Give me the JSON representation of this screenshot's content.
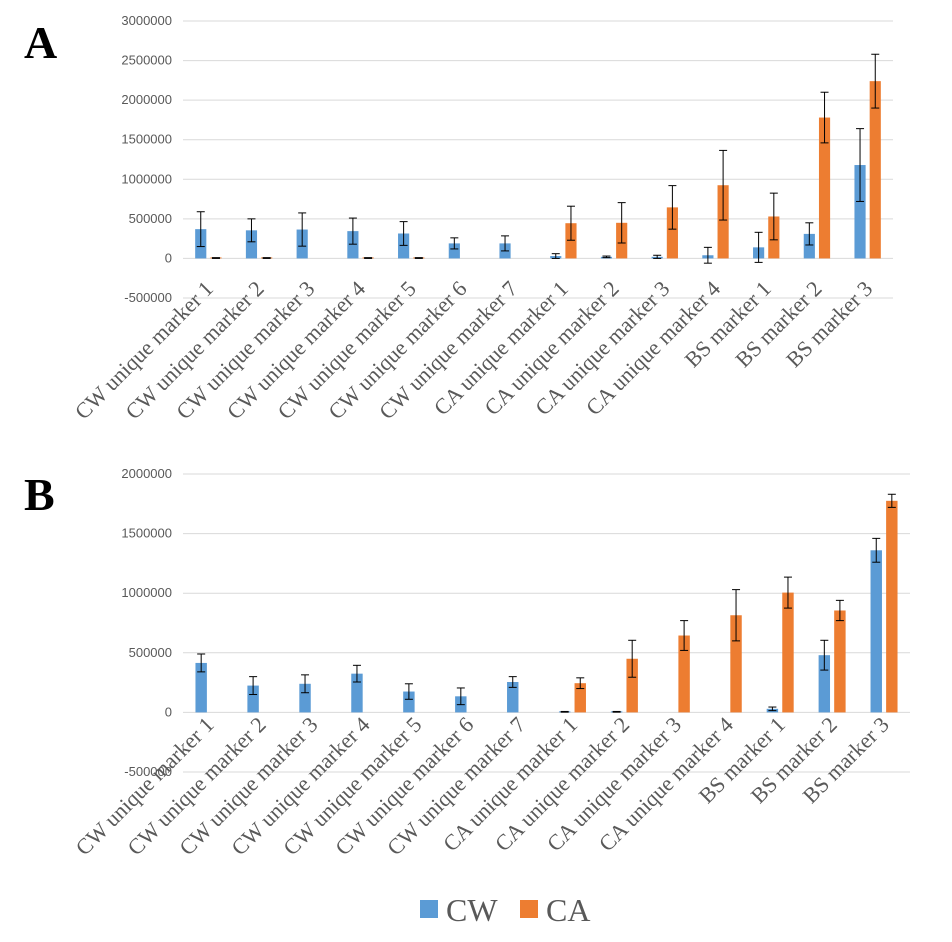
{
  "colors": {
    "CW": "#5B9BD5",
    "CA": "#ED7D31",
    "grid": "#D9D9D9",
    "axis_text": "#595959",
    "error_bar": "#000000"
  },
  "legend": {
    "items": [
      {
        "label": "CW",
        "color": "#5B9BD5"
      },
      {
        "label": "CA",
        "color": "#ED7D31"
      }
    ],
    "placement": "bottom-center"
  },
  "chart_data": [
    {
      "panel_label": "A",
      "type": "bar",
      "categories": [
        "CW unique marker 1",
        "CW unique marker 2",
        "CW unique marker 3",
        "CW unique marker 4",
        "CW unique marker 5",
        "CW unique marker 6",
        "CW unique marker 7",
        "CA unique marker 1",
        "CA unique marker 2",
        "CA unique marker 3",
        "CA unique marker 4",
        "BS marker 1",
        "BS marker 2",
        "BS marker 3"
      ],
      "yticks": [
        -500000,
        0,
        500000,
        1000000,
        1500000,
        2000000,
        2500000,
        3000000
      ],
      "ytick_labels": [
        "-500000",
        "0",
        "500000",
        "1000000",
        "1500000",
        "2000000",
        "2500000",
        "3000000"
      ],
      "ylim": [
        -500000,
        3000000
      ],
      "grid": true,
      "series": [
        {
          "name": "CW",
          "values": [
            370000,
            355000,
            365000,
            345000,
            315000,
            190000,
            190000,
            30000,
            20000,
            20000,
            40000,
            140000,
            310000,
            1180000
          ],
          "errors": [
            220000,
            145000,
            210000,
            165000,
            150000,
            70000,
            95000,
            30000,
            10000,
            20000,
            100000,
            190000,
            140000,
            460000
          ]
        },
        {
          "name": "CA",
          "values": [
            5000,
            5000,
            0,
            5000,
            5000,
            0,
            0,
            445000,
            450000,
            645000,
            925000,
            530000,
            1780000,
            2240000
          ],
          "errors": [
            5000,
            5000,
            0,
            5000,
            5000,
            0,
            0,
            215000,
            255000,
            275000,
            440000,
            295000,
            320000,
            340000
          ]
        }
      ]
    },
    {
      "panel_label": "B",
      "type": "bar",
      "categories": [
        "CW unique marker 1",
        "CW unique marker 2",
        "CW unique marker 3",
        "CW unique marker 4",
        "CW unique marker 5",
        "CW unique marker 6",
        "CW unique marker 7",
        "CA unique marker 1",
        "CA unique marker 2",
        "CA unique marker 3",
        "CA unique marker 4",
        "BS marker 1",
        "BS marker 2",
        "BS marker 3"
      ],
      "yticks": [
        -500000,
        0,
        500000,
        1000000,
        1500000,
        2000000
      ],
      "ytick_labels": [
        "-500000",
        "0",
        "500000",
        "1000000",
        "1500000",
        "2000000"
      ],
      "ylim": [
        -500000,
        2000000
      ],
      "grid": true,
      "series": [
        {
          "name": "CW",
          "values": [
            415000,
            225000,
            240000,
            325000,
            175000,
            135000,
            255000,
            5000,
            5000,
            0,
            0,
            30000,
            480000,
            1360000
          ],
          "errors": [
            75000,
            75000,
            75000,
            70000,
            65000,
            70000,
            45000,
            3000,
            3000,
            0,
            0,
            15000,
            125000,
            100000
          ]
        },
        {
          "name": "CA",
          "values": [
            0,
            0,
            0,
            0,
            0,
            0,
            0,
            245000,
            450000,
            645000,
            815000,
            1005000,
            855000,
            1775000
          ],
          "errors": [
            0,
            0,
            0,
            0,
            0,
            0,
            0,
            45000,
            155000,
            125000,
            215000,
            130000,
            85000,
            55000
          ]
        }
      ]
    }
  ]
}
